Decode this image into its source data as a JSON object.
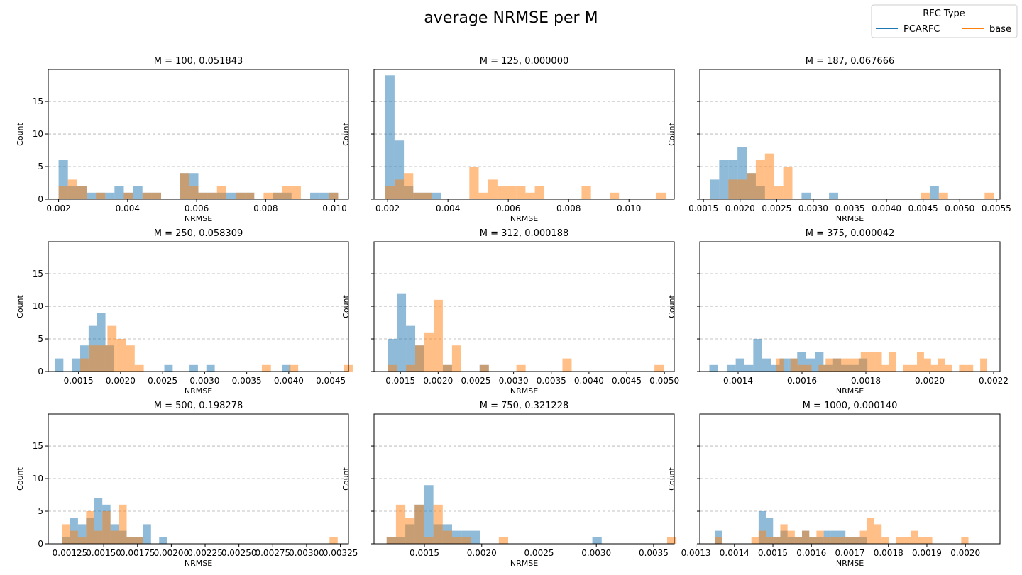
{
  "figure": {
    "title": "average NRMSE per M"
  },
  "legend": {
    "title": "RFC Type",
    "position": "top-right",
    "entries": [
      {
        "label": "PCARFC",
        "color": "#1f77b4"
      },
      {
        "label": "base",
        "color": "#ff7f0e"
      }
    ]
  },
  "colors": {
    "pcarfc_fill": "#1f77b4",
    "base_fill": "#ff7f0e",
    "overlap_hint": "#c49a7f",
    "grid": "#b0b0b0"
  },
  "chart_data": [
    {
      "type": "bar",
      "title": "M = 100, 0.051843",
      "xlabel": "NRMSE",
      "ylabel": "Count",
      "xlim": [
        0.0017,
        0.0104
      ],
      "ylim": [
        0,
        19.9
      ],
      "xticks": [
        0.002,
        0.004,
        0.006,
        0.008,
        0.01
      ],
      "xtick_labels": [
        "0.002",
        "0.004",
        "0.006",
        "0.008",
        "0.010"
      ],
      "yticks": [
        0,
        5,
        10,
        15
      ],
      "ytick_labels": [
        "0",
        "5",
        "10",
        "15"
      ],
      "grid_y": true,
      "series": [
        {
          "name": "PCARFC",
          "color": "#1f77b4",
          "bin_start": 0.002,
          "bin_width": 0.00027,
          "counts": [
            6,
            2,
            2,
            1,
            1,
            1,
            2,
            1,
            2,
            1,
            1,
            0,
            0,
            4,
            4,
            1,
            1,
            1,
            1,
            1,
            1,
            0,
            0,
            1,
            1,
            0,
            0,
            1,
            1,
            1
          ]
        },
        {
          "name": "base",
          "color": "#ff7f0e",
          "bin_start": 0.002,
          "bin_width": 0.00027,
          "counts": [
            2,
            3,
            2,
            0,
            1,
            0,
            0,
            1,
            0,
            1,
            1,
            0,
            0,
            4,
            2,
            1,
            1,
            2,
            0,
            1,
            1,
            0,
            1,
            1,
            2,
            2,
            0,
            0,
            0,
            1
          ]
        }
      ]
    },
    {
      "type": "bar",
      "title": "M = 125, 0.000000",
      "xlabel": "NRMSE",
      "ylabel": "Count",
      "xlim": [
        0.00155,
        0.0115
      ],
      "ylim": [
        0,
        19.9
      ],
      "xticks": [
        0.002,
        0.004,
        0.006,
        0.008,
        0.01
      ],
      "xtick_labels": [
        "0.002",
        "0.004",
        "0.006",
        "0.008",
        "0.010"
      ],
      "yticks": [
        0,
        5,
        10,
        15
      ],
      "ytick_labels": [
        "",
        "",
        "",
        ""
      ],
      "grid_y": true,
      "series": [
        {
          "name": "PCARFC",
          "color": "#1f77b4",
          "bin_start": 0.00192,
          "bin_width": 0.00031,
          "counts": [
            19,
            9,
            2,
            1,
            1,
            1
          ]
        },
        {
          "name": "base",
          "color": "#ff7f0e",
          "bin_start": 0.00192,
          "bin_width": 0.00031,
          "counts": [
            2,
            3,
            4,
            1,
            1,
            0,
            0,
            0,
            0,
            5,
            1,
            3,
            2,
            2,
            2,
            1,
            2,
            0,
            0,
            0,
            0,
            2,
            0,
            0,
            1,
            0,
            0,
            0,
            0,
            1
          ]
        }
      ]
    },
    {
      "type": "bar",
      "title": "M = 187, 0.067666",
      "xlabel": "NRMSE",
      "ylabel": "Count",
      "xlim": [
        0.00145,
        0.00555
      ],
      "ylim": [
        0,
        19.9
      ],
      "xticks": [
        0.0015,
        0.002,
        0.0025,
        0.003,
        0.0035,
        0.004,
        0.0045,
        0.005,
        0.0055
      ],
      "xtick_labels": [
        "0.0015",
        "0.0020",
        "0.0025",
        "0.0030",
        "0.0035",
        "0.0040",
        "0.0045",
        "0.0050",
        "0.0055"
      ],
      "yticks": [
        0,
        5,
        10,
        15
      ],
      "ytick_labels": [
        "",
        "",
        "",
        ""
      ],
      "grid_y": true,
      "series": [
        {
          "name": "PCARFC",
          "color": "#1f77b4",
          "bin_start": 0.00159,
          "bin_width": 0.000125,
          "counts": [
            3,
            6,
            6,
            8,
            4,
            2,
            0,
            0,
            0,
            0,
            1,
            0,
            0,
            1,
            0,
            0,
            0,
            0,
            0,
            0,
            0,
            0,
            0,
            0,
            2
          ]
        },
        {
          "name": "base",
          "color": "#ff7f0e",
          "bin_start": 0.00184,
          "bin_width": 0.000125,
          "counts": [
            3,
            3,
            4,
            6,
            7,
            2,
            5,
            0,
            0,
            0,
            0,
            0,
            0,
            0,
            0,
            0,
            0,
            0,
            0,
            0,
            0,
            1,
            0,
            1,
            0,
            0,
            0,
            0,
            1
          ]
        }
      ]
    },
    {
      "type": "bar",
      "title": "M = 250, 0.058309",
      "xlabel": "NRMSE",
      "ylabel": "Count",
      "xlim": [
        0.00114,
        0.00471
      ],
      "ylim": [
        0,
        19.9
      ],
      "xticks": [
        0.0015,
        0.002,
        0.0025,
        0.003,
        0.0035,
        0.004,
        0.0045
      ],
      "xtick_labels": [
        "0.0015",
        "0.0020",
        "0.0025",
        "0.0030",
        "0.0035",
        "0.0040",
        "0.0045"
      ],
      "yticks": [
        0,
        5,
        10,
        15
      ],
      "ytick_labels": [
        "0",
        "5",
        "10",
        "15"
      ],
      "grid_y": true,
      "series": [
        {
          "name": "PCARFC",
          "color": "#1f77b4",
          "bin_start": 0.00122,
          "bin_width": 0.0001,
          "counts": [
            2,
            0,
            2,
            4,
            7,
            9,
            4,
            0,
            0,
            0,
            0,
            0,
            0,
            1,
            0,
            0,
            1,
            0,
            1,
            0,
            0,
            0,
            0,
            0,
            0,
            0,
            0,
            1
          ]
        },
        {
          "name": "base",
          "color": "#ff7f0e",
          "bin_start": 0.00152,
          "bin_width": 0.000108,
          "counts": [
            2,
            4,
            4,
            7,
            5,
            4,
            1,
            0,
            0,
            0,
            0,
            0,
            0,
            0,
            0,
            0,
            0,
            0,
            0,
            0,
            1,
            0,
            0,
            1,
            0,
            0,
            0,
            0,
            0,
            1
          ]
        }
      ]
    },
    {
      "type": "bar",
      "title": "M = 312, 0.000188",
      "xlabel": "NRMSE",
      "ylabel": "Count",
      "xlim": [
        0.00115,
        0.00513
      ],
      "ylim": [
        0,
        19.9
      ],
      "xticks": [
        0.0015,
        0.002,
        0.0025,
        0.003,
        0.0035,
        0.004,
        0.0045,
        0.005
      ],
      "xtick_labels": [
        "0.0015",
        "0.0020",
        "0.0025",
        "0.0030",
        "0.0035",
        "0.0040",
        "0.0045",
        "0.0050"
      ],
      "yticks": [
        0,
        5,
        10,
        15
      ],
      "ytick_labels": [
        "",
        "",
        "",
        ""
      ],
      "grid_y": true,
      "series": [
        {
          "name": "PCARFC",
          "color": "#1f77b4",
          "bin_start": 0.00133,
          "bin_width": 0.000122,
          "counts": [
            5,
            12,
            7,
            4,
            0,
            0,
            1,
            0,
            0,
            0,
            1
          ]
        },
        {
          "name": "base",
          "color": "#ff7f0e",
          "bin_start": 0.00133,
          "bin_width": 0.000122,
          "counts": [
            1,
            0,
            1,
            4,
            6,
            11,
            1,
            4,
            0,
            0,
            1,
            0,
            0,
            0,
            1,
            0,
            0,
            0,
            0,
            2,
            0,
            0,
            0,
            0,
            0,
            0,
            0,
            0,
            0,
            1
          ]
        }
      ]
    },
    {
      "type": "bar",
      "title": "M = 375, 0.000042",
      "xlabel": "NRMSE",
      "ylabel": "Count",
      "xlim": [
        0.00128,
        0.00222
      ],
      "ylim": [
        0,
        19.9
      ],
      "xticks": [
        0.0014,
        0.0016,
        0.0018,
        0.002,
        0.0022
      ],
      "xtick_labels": [
        "0.0014",
        "0.0016",
        "0.0018",
        "0.0020",
        "0.0022"
      ],
      "yticks": [
        0,
        5,
        10,
        15
      ],
      "ytick_labels": [
        "",
        "",
        "",
        ""
      ],
      "grid_y": true,
      "series": [
        {
          "name": "PCARFC",
          "color": "#1f77b4",
          "bin_start": 0.00131,
          "bin_width": 2.75e-05,
          "counts": [
            1,
            0,
            1,
            2,
            1,
            5,
            2,
            1,
            2,
            2,
            3,
            2,
            3,
            1,
            2,
            1,
            1,
            2
          ]
        },
        {
          "name": "base",
          "color": "#ff7f0e",
          "bin_start": 0.00152,
          "bin_width": 2.2e-05,
          "counts": [
            2,
            0,
            2,
            1,
            1,
            0,
            1,
            2,
            2,
            2,
            2,
            2,
            3,
            3,
            3,
            1,
            3,
            0,
            1,
            1,
            3,
            2,
            1,
            2,
            1,
            0,
            1,
            1,
            0,
            2
          ]
        }
      ]
    },
    {
      "type": "bar",
      "title": "M = 500, 0.198278",
      "xlabel": "NRMSE",
      "ylabel": "Count",
      "xlim": [
        0.00109,
        0.00331
      ],
      "ylim": [
        0,
        19.9
      ],
      "xticks": [
        0.00125,
        0.0015,
        0.00175,
        0.002,
        0.00225,
        0.0025,
        0.00275,
        0.003,
        0.00325
      ],
      "xtick_labels": [
        "0.00125",
        "0.00150",
        "0.00175",
        "0.00200",
        "0.00225",
        "0.00250",
        "0.00275",
        "0.00300",
        "0.00325"
      ],
      "yticks": [
        0,
        5,
        10,
        15
      ],
      "ytick_labels": [
        "0",
        "5",
        "10",
        "15"
      ],
      "grid_y": true,
      "series": [
        {
          "name": "PCARFC",
          "color": "#1f77b4",
          "bin_start": 0.00119,
          "bin_width": 6e-05,
          "counts": [
            1,
            4,
            3,
            4,
            7,
            6,
            3,
            2,
            1,
            1,
            3,
            0,
            1
          ]
        },
        {
          "name": "base",
          "color": "#ff7f0e",
          "bin_start": 0.00119,
          "bin_width": 6e-05,
          "counts": [
            3,
            2,
            1,
            5,
            2,
            5,
            2,
            6,
            1,
            1,
            0,
            0,
            0,
            0,
            0,
            0,
            0,
            0,
            0,
            0,
            0,
            0,
            0,
            0,
            0,
            0,
            0,
            0,
            0,
            0,
            0,
            0,
            0,
            1
          ]
        }
      ]
    },
    {
      "type": "bar",
      "title": "M = 750, 0.321228",
      "xlabel": "NRMSE",
      "ylabel": "Count",
      "xlim": [
        0.00106,
        0.00368
      ],
      "ylim": [
        0,
        19.9
      ],
      "xticks": [
        0.0015,
        0.002,
        0.0025,
        0.003,
        0.0035
      ],
      "xtick_labels": [
        "0.0015",
        "0.0020",
        "0.0025",
        "0.0030",
        "0.0035"
      ],
      "yticks": [
        0,
        5,
        10,
        15
      ],
      "ytick_labels": [
        "",
        "",
        "",
        ""
      ],
      "grid_y": true,
      "series": [
        {
          "name": "PCARFC",
          "color": "#1f77b4",
          "bin_start": 0.00117,
          "bin_width": 8.16e-05,
          "counts": [
            1,
            1,
            3,
            6,
            9,
            3,
            3,
            2,
            2,
            2,
            0,
            0,
            0,
            0,
            0,
            0,
            0,
            0,
            0,
            0,
            0,
            0,
            1
          ]
        },
        {
          "name": "base",
          "color": "#ff7f0e",
          "bin_start": 0.00117,
          "bin_width": 8.16e-05,
          "counts": [
            1,
            6,
            4,
            6,
            1,
            6,
            2,
            1,
            1,
            0,
            0,
            0,
            1,
            0,
            0,
            0,
            0,
            0,
            0,
            0,
            0,
            0,
            0,
            0,
            0,
            0,
            0,
            0,
            0,
            0,
            1
          ]
        }
      ]
    },
    {
      "type": "bar",
      "title": "M = 1000, 0.000140",
      "xlabel": "NRMSE",
      "ylabel": "Count",
      "xlim": [
        0.00131,
        0.00209
      ],
      "ylim": [
        0,
        19.9
      ],
      "xticks": [
        0.0013,
        0.0014,
        0.0015,
        0.0016,
        0.0017,
        0.0018,
        0.0019,
        0.002
      ],
      "xtick_labels": [
        "0.0013",
        "0.0014",
        "0.0015",
        "0.0016",
        "0.0017",
        "0.0018",
        "0.0019",
        "0.0020"
      ],
      "yticks": [
        0,
        5,
        10,
        15
      ],
      "ytick_labels": [
        "",
        "",
        "",
        ""
      ],
      "grid_y": true,
      "series": [
        {
          "name": "PCARFC",
          "color": "#1f77b4",
          "bin_start": 0.00135,
          "bin_width": 1.88e-05,
          "counts": [
            2,
            0,
            0,
            0,
            0,
            0,
            5,
            4,
            1,
            2,
            1,
            1,
            2,
            1,
            1,
            2,
            2,
            2,
            1,
            1,
            1
          ]
        },
        {
          "name": "base",
          "color": "#ff7f0e",
          "bin_start": 0.00135,
          "bin_width": 1.88e-05,
          "counts": [
            1,
            0,
            0,
            0,
            0,
            1,
            2,
            1,
            1,
            3,
            2,
            1,
            2,
            1,
            2,
            1,
            1,
            1,
            1,
            1,
            2,
            4,
            3,
            1,
            0,
            1,
            1,
            2,
            1,
            1,
            0,
            0,
            0,
            0,
            1
          ]
        }
      ]
    }
  ]
}
